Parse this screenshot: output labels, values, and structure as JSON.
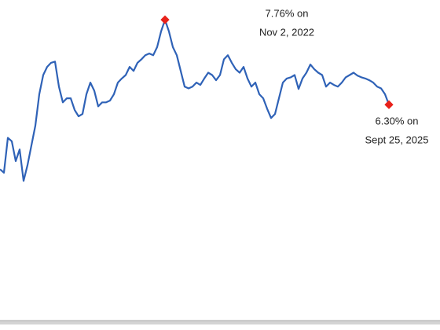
{
  "chart_data": {
    "type": "line",
    "series": [
      {
        "color": "#2f62b7",
        "values": [
          5.19,
          5.13,
          5.73,
          5.67,
          5.33,
          5.53,
          4.99,
          5.26,
          5.6,
          5.94,
          6.48,
          6.81,
          6.95,
          7.02,
          7.04,
          6.61,
          6.34,
          6.41,
          6.41,
          6.21,
          6.1,
          6.14,
          6.48,
          6.68,
          6.54,
          6.27,
          6.34,
          6.34,
          6.37,
          6.48,
          6.68,
          6.75,
          6.81,
          6.95,
          6.88,
          7.02,
          7.08,
          7.15,
          7.18,
          7.15,
          7.29,
          7.56,
          7.76,
          7.56,
          7.29,
          7.15,
          6.88,
          6.61,
          6.58,
          6.61,
          6.68,
          6.64,
          6.75,
          6.85,
          6.81,
          6.72,
          6.81,
          7.08,
          7.15,
          7.02,
          6.91,
          6.85,
          6.95,
          6.75,
          6.61,
          6.68,
          6.48,
          6.41,
          6.23,
          6.07,
          6.14,
          6.41,
          6.68,
          6.75,
          6.77,
          6.81,
          6.57,
          6.75,
          6.85,
          6.99,
          6.91,
          6.85,
          6.81,
          6.61,
          6.68,
          6.64,
          6.61,
          6.68,
          6.77,
          6.81,
          6.85,
          6.8,
          6.77,
          6.75,
          6.72,
          6.68,
          6.61,
          6.58,
          6.48,
          6.3
        ]
      }
    ],
    "ylim": [
      2.56,
      8.1
    ],
    "marker_color": "#e8221b",
    "annotations": [
      {
        "lines": [
          "7.76% on",
          "Nov 2, 2022"
        ]
      },
      {
        "lines": [
          "6.30% on",
          "Sept 25, 2025"
        ]
      }
    ]
  }
}
